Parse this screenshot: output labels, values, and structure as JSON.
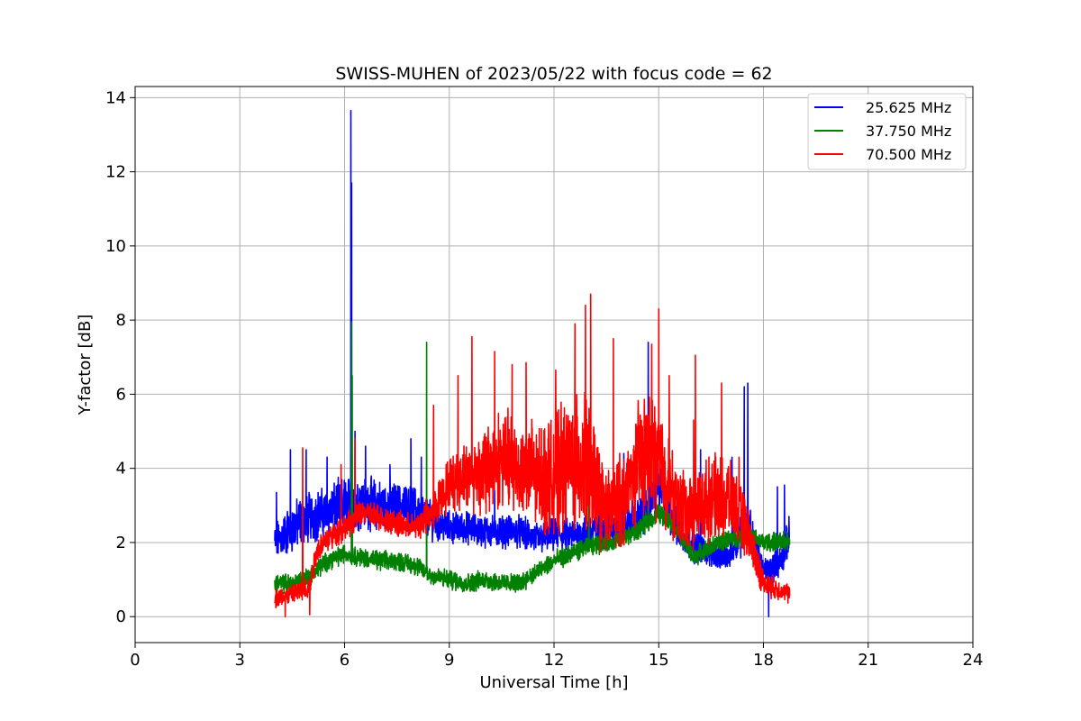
{
  "chart_data": {
    "type": "line",
    "title": "SWISS-MUHEN of 2023/05/22 with focus code = 62",
    "xlabel": "Universal Time [h]",
    "ylabel": "Y-factor [dB]",
    "xlim": [
      0,
      24
    ],
    "ylim": [
      -0.7,
      14.3
    ],
    "xticks": [
      0,
      3,
      6,
      9,
      12,
      15,
      18,
      21,
      24
    ],
    "yticks": [
      0,
      2,
      4,
      6,
      8,
      10,
      12,
      14
    ],
    "grid": true,
    "legend_position": "top-right",
    "series": [
      {
        "name": "25.625 MHz",
        "color": "#0000ff",
        "profile": [
          [
            4.0,
            2.0,
            0.6
          ],
          [
            4.5,
            2.4,
            0.8
          ],
          [
            5.0,
            2.7,
            0.8
          ],
          [
            5.5,
            2.8,
            0.8
          ],
          [
            6.0,
            3.0,
            0.9
          ],
          [
            6.5,
            3.1,
            0.8
          ],
          [
            7.0,
            3.0,
            0.8
          ],
          [
            7.5,
            3.0,
            0.7
          ],
          [
            8.0,
            2.9,
            0.7
          ],
          [
            8.5,
            2.6,
            0.6
          ],
          [
            9.0,
            2.4,
            0.5
          ],
          [
            9.5,
            2.4,
            0.5
          ],
          [
            10.0,
            2.3,
            0.5
          ],
          [
            10.5,
            2.3,
            0.5
          ],
          [
            11.0,
            2.3,
            0.5
          ],
          [
            11.5,
            2.1,
            0.5
          ],
          [
            12.0,
            2.2,
            0.5
          ],
          [
            12.5,
            2.2,
            0.5
          ],
          [
            13.0,
            2.3,
            0.6
          ],
          [
            13.5,
            2.4,
            0.6
          ],
          [
            14.0,
            2.5,
            0.6
          ],
          [
            14.5,
            2.7,
            0.7
          ],
          [
            15.0,
            3.6,
            0.8
          ],
          [
            15.5,
            2.4,
            0.6
          ],
          [
            16.0,
            1.9,
            0.5
          ],
          [
            16.5,
            1.7,
            0.4
          ],
          [
            17.0,
            1.6,
            0.4
          ],
          [
            17.5,
            2.6,
            0.9
          ],
          [
            18.0,
            1.2,
            0.4
          ],
          [
            18.5,
            1.5,
            0.5
          ],
          [
            18.75,
            2.2,
            0.6
          ]
        ],
        "spikes": [
          [
            6.18,
            13.65
          ],
          [
            6.2,
            11.7
          ],
          [
            6.3,
            5.0
          ],
          [
            4.05,
            3.35
          ],
          [
            4.45,
            4.5
          ],
          [
            4.9,
            4.5
          ],
          [
            5.5,
            4.3
          ],
          [
            6.6,
            4.6
          ],
          [
            7.3,
            4.1
          ],
          [
            7.9,
            4.8
          ],
          [
            8.2,
            4.3
          ],
          [
            14.7,
            7.4
          ],
          [
            16.2,
            4.5
          ],
          [
            17.45,
            6.2
          ],
          [
            17.55,
            6.3
          ],
          [
            17.1,
            4.3
          ],
          [
            18.6,
            3.55
          ],
          [
            18.4,
            3.5
          ],
          [
            14.0,
            4.4
          ],
          [
            10.3,
            3.4
          ],
          [
            18.15,
            0.0
          ]
        ]
      },
      {
        "name": "37.750 MHz",
        "color": "#008000",
        "profile": [
          [
            4.0,
            0.9,
            0.3
          ],
          [
            4.5,
            0.9,
            0.3
          ],
          [
            5.0,
            1.1,
            0.3
          ],
          [
            5.5,
            1.5,
            0.3
          ],
          [
            6.0,
            1.7,
            0.3
          ],
          [
            6.5,
            1.6,
            0.3
          ],
          [
            7.0,
            1.5,
            0.3
          ],
          [
            7.5,
            1.5,
            0.3
          ],
          [
            8.0,
            1.4,
            0.3
          ],
          [
            8.5,
            1.1,
            0.3
          ],
          [
            9.0,
            1.0,
            0.3
          ],
          [
            9.5,
            0.9,
            0.3
          ],
          [
            10.0,
            1.0,
            0.3
          ],
          [
            10.5,
            0.9,
            0.3
          ],
          [
            11.0,
            0.9,
            0.3
          ],
          [
            11.5,
            1.2,
            0.3
          ],
          [
            12.0,
            1.5,
            0.3
          ],
          [
            12.5,
            1.7,
            0.3
          ],
          [
            13.0,
            1.9,
            0.3
          ],
          [
            13.5,
            2.0,
            0.3
          ],
          [
            14.0,
            2.1,
            0.3
          ],
          [
            14.5,
            2.4,
            0.3
          ],
          [
            15.0,
            2.8,
            0.3
          ],
          [
            15.5,
            2.4,
            0.3
          ],
          [
            16.0,
            1.6,
            0.3
          ],
          [
            16.5,
            1.9,
            0.3
          ],
          [
            17.0,
            2.1,
            0.3
          ],
          [
            17.5,
            2.2,
            0.3
          ],
          [
            18.0,
            2.0,
            0.3
          ],
          [
            18.5,
            2.0,
            0.3
          ],
          [
            18.75,
            2.1,
            0.3
          ]
        ],
        "spikes": [
          [
            6.2,
            7.95
          ],
          [
            6.22,
            6.5
          ],
          [
            8.35,
            7.4
          ],
          [
            13.0,
            5.3
          ],
          [
            14.7,
            3.5
          ],
          [
            15.2,
            3.4
          ]
        ]
      },
      {
        "name": "70.500 MHz",
        "color": "#ff0000",
        "profile": [
          [
            4.0,
            0.5,
            0.3
          ],
          [
            4.5,
            0.6,
            0.3
          ],
          [
            5.0,
            0.8,
            0.4
          ],
          [
            5.2,
            1.8,
            0.4
          ],
          [
            5.5,
            2.1,
            0.4
          ],
          [
            6.0,
            2.4,
            0.4
          ],
          [
            6.5,
            2.8,
            0.4
          ],
          [
            7.0,
            2.7,
            0.4
          ],
          [
            7.5,
            2.5,
            0.4
          ],
          [
            8.0,
            2.4,
            0.4
          ],
          [
            8.5,
            2.8,
            0.6
          ],
          [
            9.0,
            3.6,
            0.8
          ],
          [
            9.5,
            3.8,
            1.0
          ],
          [
            10.0,
            3.9,
            1.4
          ],
          [
            10.5,
            4.3,
            1.5
          ],
          [
            11.0,
            4.0,
            1.6
          ],
          [
            11.5,
            3.8,
            1.6
          ],
          [
            12.0,
            3.8,
            1.8
          ],
          [
            12.5,
            4.2,
            2.0
          ],
          [
            13.0,
            4.0,
            2.2
          ],
          [
            13.5,
            2.8,
            1.2
          ],
          [
            14.0,
            3.2,
            1.5
          ],
          [
            14.5,
            4.4,
            1.8
          ],
          [
            15.0,
            4.3,
            1.8
          ],
          [
            15.5,
            3.0,
            1.2
          ],
          [
            16.0,
            2.8,
            1.2
          ],
          [
            16.5,
            3.2,
            1.3
          ],
          [
            17.0,
            3.2,
            1.2
          ],
          [
            17.5,
            2.4,
            0.9
          ],
          [
            18.0,
            0.9,
            0.4
          ],
          [
            18.5,
            0.7,
            0.3
          ],
          [
            18.75,
            0.6,
            0.3
          ]
        ],
        "spikes": [
          [
            4.8,
            4.55
          ],
          [
            5.9,
            4.1
          ],
          [
            6.3,
            4.8
          ],
          [
            8.55,
            5.7
          ],
          [
            9.25,
            6.5
          ],
          [
            9.65,
            7.55
          ],
          [
            10.3,
            7.15
          ],
          [
            10.8,
            6.8
          ],
          [
            11.2,
            6.85
          ],
          [
            12.05,
            6.65
          ],
          [
            12.6,
            7.9
          ],
          [
            12.9,
            8.4
          ],
          [
            13.05,
            8.7
          ],
          [
            13.7,
            7.5
          ],
          [
            14.8,
            7.35
          ],
          [
            15.0,
            8.3
          ],
          [
            15.3,
            6.5
          ],
          [
            16.0,
            5.3
          ],
          [
            16.05,
            7.05
          ],
          [
            16.8,
            6.3
          ],
          [
            17.3,
            4.3
          ],
          [
            4.3,
            0.0
          ],
          [
            5.0,
            0.05
          ]
        ]
      }
    ]
  }
}
